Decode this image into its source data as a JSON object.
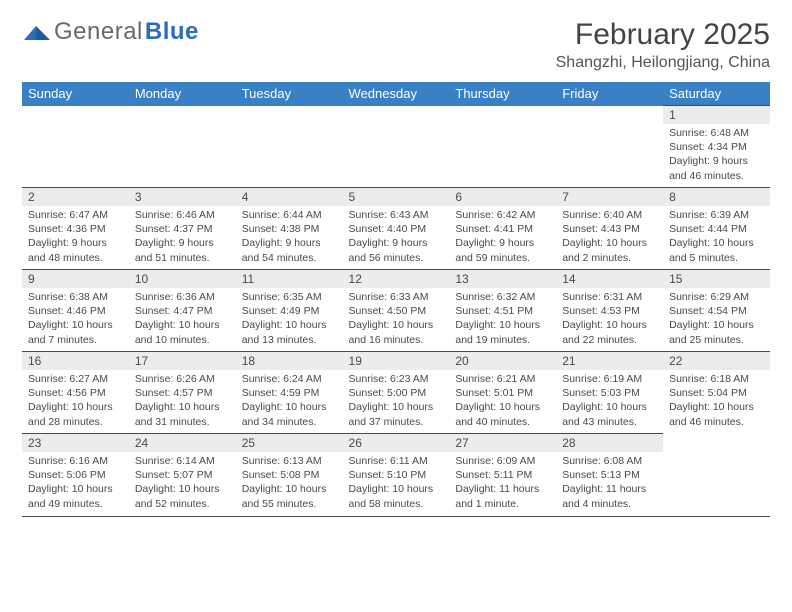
{
  "colors": {
    "header_bg": "#3a80c4",
    "header_text": "#ffffff",
    "daynum_bg": "#ececec",
    "border": "#4a4a4a",
    "body_text": "#4a4a4a",
    "logo_gray": "#6a6a6a",
    "logo_blue": "#2a6db8"
  },
  "logo": {
    "text1": "General",
    "text2": "Blue"
  },
  "header": {
    "title": "February 2025",
    "location": "Shangzhi, Heilongjiang, China"
  },
  "weekdays": [
    "Sunday",
    "Monday",
    "Tuesday",
    "Wednesday",
    "Thursday",
    "Friday",
    "Saturday"
  ],
  "weeks": [
    [
      {
        "day": "",
        "lines": []
      },
      {
        "day": "",
        "lines": []
      },
      {
        "day": "",
        "lines": []
      },
      {
        "day": "",
        "lines": []
      },
      {
        "day": "",
        "lines": []
      },
      {
        "day": "",
        "lines": []
      },
      {
        "day": "1",
        "lines": [
          "Sunrise: 6:48 AM",
          "Sunset: 4:34 PM",
          "Daylight: 9 hours and 46 minutes."
        ]
      }
    ],
    [
      {
        "day": "2",
        "lines": [
          "Sunrise: 6:47 AM",
          "Sunset: 4:36 PM",
          "Daylight: 9 hours and 48 minutes."
        ]
      },
      {
        "day": "3",
        "lines": [
          "Sunrise: 6:46 AM",
          "Sunset: 4:37 PM",
          "Daylight: 9 hours and 51 minutes."
        ]
      },
      {
        "day": "4",
        "lines": [
          "Sunrise: 6:44 AM",
          "Sunset: 4:38 PM",
          "Daylight: 9 hours and 54 minutes."
        ]
      },
      {
        "day": "5",
        "lines": [
          "Sunrise: 6:43 AM",
          "Sunset: 4:40 PM",
          "Daylight: 9 hours and 56 minutes."
        ]
      },
      {
        "day": "6",
        "lines": [
          "Sunrise: 6:42 AM",
          "Sunset: 4:41 PM",
          "Daylight: 9 hours and 59 minutes."
        ]
      },
      {
        "day": "7",
        "lines": [
          "Sunrise: 6:40 AM",
          "Sunset: 4:43 PM",
          "Daylight: 10 hours and 2 minutes."
        ]
      },
      {
        "day": "8",
        "lines": [
          "Sunrise: 6:39 AM",
          "Sunset: 4:44 PM",
          "Daylight: 10 hours and 5 minutes."
        ]
      }
    ],
    [
      {
        "day": "9",
        "lines": [
          "Sunrise: 6:38 AM",
          "Sunset: 4:46 PM",
          "Daylight: 10 hours and 7 minutes."
        ]
      },
      {
        "day": "10",
        "lines": [
          "Sunrise: 6:36 AM",
          "Sunset: 4:47 PM",
          "Daylight: 10 hours and 10 minutes."
        ]
      },
      {
        "day": "11",
        "lines": [
          "Sunrise: 6:35 AM",
          "Sunset: 4:49 PM",
          "Daylight: 10 hours and 13 minutes."
        ]
      },
      {
        "day": "12",
        "lines": [
          "Sunrise: 6:33 AM",
          "Sunset: 4:50 PM",
          "Daylight: 10 hours and 16 minutes."
        ]
      },
      {
        "day": "13",
        "lines": [
          "Sunrise: 6:32 AM",
          "Sunset: 4:51 PM",
          "Daylight: 10 hours and 19 minutes."
        ]
      },
      {
        "day": "14",
        "lines": [
          "Sunrise: 6:31 AM",
          "Sunset: 4:53 PM",
          "Daylight: 10 hours and 22 minutes."
        ]
      },
      {
        "day": "15",
        "lines": [
          "Sunrise: 6:29 AM",
          "Sunset: 4:54 PM",
          "Daylight: 10 hours and 25 minutes."
        ]
      }
    ],
    [
      {
        "day": "16",
        "lines": [
          "Sunrise: 6:27 AM",
          "Sunset: 4:56 PM",
          "Daylight: 10 hours and 28 minutes."
        ]
      },
      {
        "day": "17",
        "lines": [
          "Sunrise: 6:26 AM",
          "Sunset: 4:57 PM",
          "Daylight: 10 hours and 31 minutes."
        ]
      },
      {
        "day": "18",
        "lines": [
          "Sunrise: 6:24 AM",
          "Sunset: 4:59 PM",
          "Daylight: 10 hours and 34 minutes."
        ]
      },
      {
        "day": "19",
        "lines": [
          "Sunrise: 6:23 AM",
          "Sunset: 5:00 PM",
          "Daylight: 10 hours and 37 minutes."
        ]
      },
      {
        "day": "20",
        "lines": [
          "Sunrise: 6:21 AM",
          "Sunset: 5:01 PM",
          "Daylight: 10 hours and 40 minutes."
        ]
      },
      {
        "day": "21",
        "lines": [
          "Sunrise: 6:19 AM",
          "Sunset: 5:03 PM",
          "Daylight: 10 hours and 43 minutes."
        ]
      },
      {
        "day": "22",
        "lines": [
          "Sunrise: 6:18 AM",
          "Sunset: 5:04 PM",
          "Daylight: 10 hours and 46 minutes."
        ]
      }
    ],
    [
      {
        "day": "23",
        "lines": [
          "Sunrise: 6:16 AM",
          "Sunset: 5:06 PM",
          "Daylight: 10 hours and 49 minutes."
        ]
      },
      {
        "day": "24",
        "lines": [
          "Sunrise: 6:14 AM",
          "Sunset: 5:07 PM",
          "Daylight: 10 hours and 52 minutes."
        ]
      },
      {
        "day": "25",
        "lines": [
          "Sunrise: 6:13 AM",
          "Sunset: 5:08 PM",
          "Daylight: 10 hours and 55 minutes."
        ]
      },
      {
        "day": "26",
        "lines": [
          "Sunrise: 6:11 AM",
          "Sunset: 5:10 PM",
          "Daylight: 10 hours and 58 minutes."
        ]
      },
      {
        "day": "27",
        "lines": [
          "Sunrise: 6:09 AM",
          "Sunset: 5:11 PM",
          "Daylight: 11 hours and 1 minute."
        ]
      },
      {
        "day": "28",
        "lines": [
          "Sunrise: 6:08 AM",
          "Sunset: 5:13 PM",
          "Daylight: 11 hours and 4 minutes."
        ]
      },
      {
        "day": "",
        "lines": []
      }
    ]
  ]
}
